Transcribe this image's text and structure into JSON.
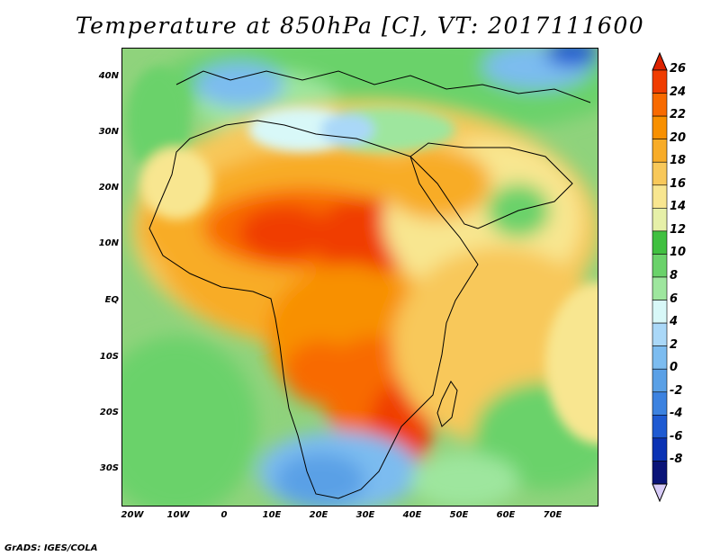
{
  "title": "Temperature at 850hPa [C], VT: 2017111600",
  "footer": "GrADS: IGES/COLA",
  "axes": {
    "lat_labels": [
      "40N",
      "30N",
      "20N",
      "10N",
      "EQ",
      "10S",
      "20S",
      "30S"
    ],
    "lon_labels": [
      "20W",
      "10W",
      "0",
      "10E",
      "20E",
      "30E",
      "40E",
      "50E",
      "60E",
      "70E"
    ]
  },
  "colorbar": {
    "labels": [
      "26",
      "24",
      "22",
      "20",
      "18",
      "16",
      "14",
      "12",
      "10",
      "8",
      "6",
      "4",
      "2",
      "0",
      "-2",
      "-4",
      "-6",
      "-8"
    ],
    "colors": [
      "#f03c00",
      "#f86a00",
      "#f89000",
      "#f8ac28",
      "#f8c85a",
      "#f8e690",
      "#e6f0a8",
      "#40c040",
      "#6ad26a",
      "#9ee69e",
      "#d8f8f8",
      "#aad8f8",
      "#7cbcf0",
      "#5aa0e6",
      "#3c82e0",
      "#1e5ad2",
      "#0a32b4",
      "#0a1478"
    ],
    "top_triangle_color": "#dd2200",
    "bottom_triangle_color": "#d8ccf8"
  },
  "map": {
    "domain": {
      "lon_min": -25,
      "lon_max": 80,
      "lat_min": -37,
      "lat_max": 45
    },
    "ocean_color": "#8fd37c"
  }
}
